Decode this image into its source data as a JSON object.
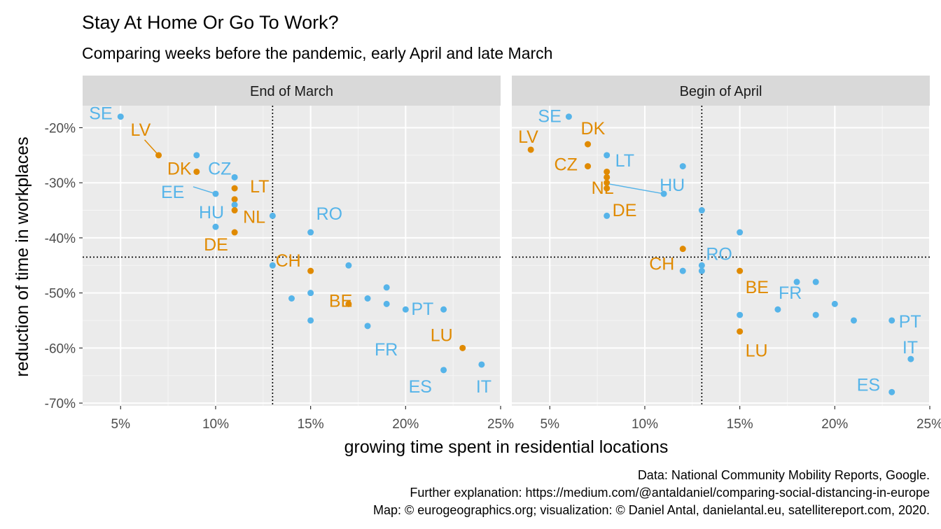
{
  "chart_data": {
    "type": "scatter",
    "title": "Stay At Home Or Go To Work?",
    "subtitle": "Comparing weeks before the pandemic, early April and late March",
    "xlabel": "growing time spent in residential locations",
    "ylabel": "reduction of time in workplaces",
    "x_ticks": [
      5,
      10,
      15,
      20,
      25
    ],
    "x_tick_labels": [
      "5%",
      "10%",
      "15%",
      "20%",
      "25%"
    ],
    "y_ticks": [
      -20,
      -30,
      -40,
      -50,
      -60,
      -70
    ],
    "y_tick_labels": [
      "-20%",
      "-30%",
      "-40%",
      "-50%",
      "-60%",
      "-70%"
    ],
    "xlim": [
      3,
      25
    ],
    "ylim": [
      -70.5,
      -16
    ],
    "grid": true,
    "legend": "none",
    "colors": {
      "labeled": "#E08A00",
      "other": "#56B4E9"
    },
    "caption": [
      "Data: National Community Mobility Reports, Google.",
      "Further explanation: https://medium.com/@antaldaniel/comparing-social-distancing-in-europe",
      "Map: © eurogeographics.org; visualization: © Daniel Antal, danielantal.eu, satellitereport.com, 2020."
    ],
    "panels": [
      {
        "name": "End of March",
        "ref_x": 13,
        "ref_y": -43.5,
        "points": [
          {
            "x": 5,
            "y": -18,
            "label": "SE",
            "group": "other"
          },
          {
            "x": 7,
            "y": -25,
            "label": "LV",
            "group": "labeled"
          },
          {
            "x": 9,
            "y": -25,
            "group": "other"
          },
          {
            "x": 9,
            "y": -28,
            "label": "DK",
            "group": "labeled"
          },
          {
            "x": 10,
            "y": -32,
            "label": "EE",
            "group": "other"
          },
          {
            "x": 10,
            "y": -38,
            "label": "HU",
            "group": "other"
          },
          {
            "x": 11,
            "y": -29,
            "label": "CZ",
            "group": "other"
          },
          {
            "x": 11,
            "y": -31,
            "label": "LT",
            "group": "labeled"
          },
          {
            "x": 11,
            "y": -33,
            "group": "labeled"
          },
          {
            "x": 11,
            "y": -34,
            "group": "other"
          },
          {
            "x": 11,
            "y": -35,
            "label": "NL",
            "group": "labeled"
          },
          {
            "x": 11,
            "y": -39,
            "label": "DE",
            "group": "labeled"
          },
          {
            "x": 13,
            "y": -36,
            "group": "other"
          },
          {
            "x": 13,
            "y": -45,
            "group": "other"
          },
          {
            "x": 14,
            "y": -51,
            "group": "other"
          },
          {
            "x": 15,
            "y": -39,
            "label": "RO",
            "group": "other"
          },
          {
            "x": 15,
            "y": -46,
            "label": "CH",
            "group": "labeled"
          },
          {
            "x": 15,
            "y": -50,
            "group": "other"
          },
          {
            "x": 15,
            "y": -55,
            "group": "other"
          },
          {
            "x": 17,
            "y": -45,
            "group": "other"
          },
          {
            "x": 17,
            "y": -52,
            "label": "BE",
            "group": "labeled"
          },
          {
            "x": 18,
            "y": -51,
            "group": "other"
          },
          {
            "x": 18,
            "y": -56,
            "label": "FR",
            "group": "other"
          },
          {
            "x": 19,
            "y": -49,
            "group": "other"
          },
          {
            "x": 19,
            "y": -52,
            "group": "other"
          },
          {
            "x": 20,
            "y": -53,
            "label": "PT",
            "group": "other"
          },
          {
            "x": 22,
            "y": -53,
            "group": "other"
          },
          {
            "x": 22,
            "y": -64,
            "label": "ES",
            "group": "other"
          },
          {
            "x": 23,
            "y": -60,
            "label": "LU",
            "group": "labeled"
          },
          {
            "x": 24,
            "y": -63,
            "label": "IT",
            "group": "other"
          }
        ]
      },
      {
        "name": "Begin of April",
        "ref_x": 13,
        "ref_y": -43.5,
        "points": [
          {
            "x": 4,
            "y": -24,
            "label": "LV",
            "group": "labeled"
          },
          {
            "x": 6,
            "y": -18,
            "label": "SE",
            "group": "other"
          },
          {
            "x": 7,
            "y": -23,
            "label": "DK",
            "group": "labeled"
          },
          {
            "x": 7,
            "y": -27,
            "label": "CZ",
            "group": "labeled"
          },
          {
            "x": 8,
            "y": -25,
            "label": "LT",
            "group": "other"
          },
          {
            "x": 8,
            "y": -28,
            "group": "labeled"
          },
          {
            "x": 8,
            "y": -29,
            "group": "labeled"
          },
          {
            "x": 8,
            "y": -30,
            "label": "NL",
            "group": "labeled"
          },
          {
            "x": 8,
            "y": -31,
            "label": "DE",
            "group": "labeled"
          },
          {
            "x": 8,
            "y": -36,
            "group": "other"
          },
          {
            "x": 11,
            "y": -32,
            "label": "HU",
            "group": "other"
          },
          {
            "x": 12,
            "y": -27,
            "group": "other"
          },
          {
            "x": 12,
            "y": -42,
            "label": "CH",
            "group": "labeled"
          },
          {
            "x": 12,
            "y": -46,
            "group": "other"
          },
          {
            "x": 13,
            "y": -35,
            "group": "other"
          },
          {
            "x": 13,
            "y": -45,
            "label": "RO",
            "group": "other"
          },
          {
            "x": 13,
            "y": -46,
            "group": "other"
          },
          {
            "x": 15,
            "y": -39,
            "group": "other"
          },
          {
            "x": 15,
            "y": -46,
            "label": "BE",
            "group": "labeled"
          },
          {
            "x": 15,
            "y": -54,
            "group": "other"
          },
          {
            "x": 15,
            "y": -57,
            "label": "LU",
            "group": "labeled"
          },
          {
            "x": 17,
            "y": -53,
            "group": "other"
          },
          {
            "x": 18,
            "y": -48,
            "label": "FR",
            "group": "other"
          },
          {
            "x": 19,
            "y": -48,
            "group": "other"
          },
          {
            "x": 19,
            "y": -54,
            "group": "other"
          },
          {
            "x": 20,
            "y": -52,
            "group": "other"
          },
          {
            "x": 21,
            "y": -55,
            "group": "other"
          },
          {
            "x": 23,
            "y": -55,
            "label": "PT",
            "group": "other"
          },
          {
            "x": 23,
            "y": -68,
            "label": "ES",
            "group": "other"
          },
          {
            "x": 24,
            "y": -62,
            "label": "IT",
            "group": "other"
          }
        ]
      }
    ]
  }
}
